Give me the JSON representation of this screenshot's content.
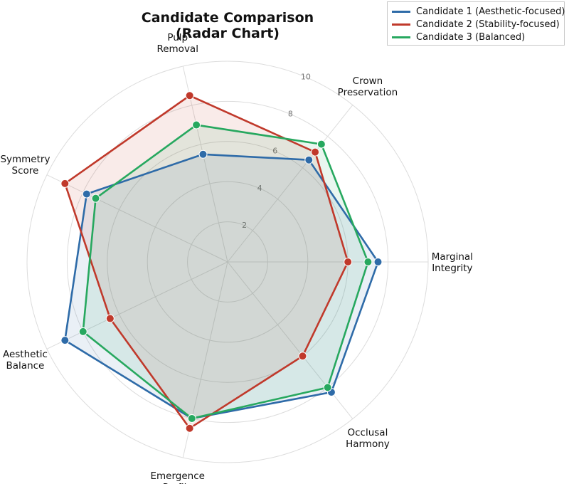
{
  "chart_data": {
    "type": "radar",
    "title_lines": [
      "Candidate Comparison",
      "(Radar Chart)"
    ],
    "axes": [
      "Marginal\nIntegrity",
      "Crown\nPreservation",
      "Pulp\nRemoval",
      "Symmetry\nScore",
      "Aesthetic\nBalance",
      "Emergence\nProfile",
      "Occlusal\nHarmony"
    ],
    "radial_ticks": [
      "2",
      "4",
      "6",
      "8",
      "10"
    ],
    "rlim": [
      0,
      10
    ],
    "grid": true,
    "legend_position": "top-right",
    "series": [
      {
        "name": "Candidate 1 (Aesthetic-focused)",
        "color": "#2e6ba8",
        "values": [
          7.5,
          6.5,
          5.5,
          7.8,
          9.0,
          8.0,
          8.3
        ]
      },
      {
        "name": "Candidate 2 (Stability-focused)",
        "color": "#c0392b",
        "values": [
          6.0,
          7.0,
          8.5,
          9.0,
          6.5,
          8.5,
          6.0
        ]
      },
      {
        "name": "Candidate 3 (Balanced)",
        "color": "#27a85f",
        "values": [
          7.0,
          7.5,
          7.0,
          7.3,
          8.0,
          8.0,
          8.0
        ]
      }
    ]
  }
}
